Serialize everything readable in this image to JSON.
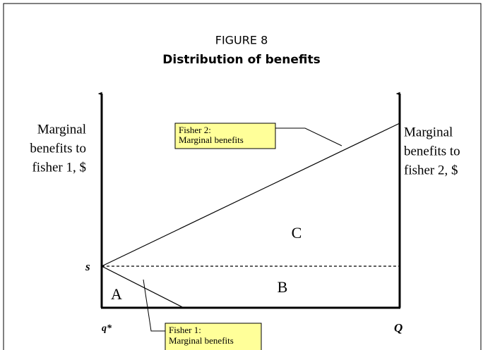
{
  "header": {
    "figure": "FIGURE 8",
    "title": "Distribution of benefits"
  },
  "left_axis_label": [
    "Marginal",
    "benefits to",
    "fisher 1, $"
  ],
  "right_axis_label": [
    "Marginal",
    "benefits to",
    "fisher 2, $"
  ],
  "axis_points": {
    "s": "s",
    "q_star": "q*",
    "Q": "Q"
  },
  "areas": {
    "A": "A",
    "B": "B",
    "C": "C"
  },
  "callouts": [
    {
      "lines": [
        "Fisher 2:",
        "Marginal benefits"
      ]
    },
    {
      "lines": [
        "Fisher 1:",
        "Marginal benefits"
      ]
    }
  ]
}
